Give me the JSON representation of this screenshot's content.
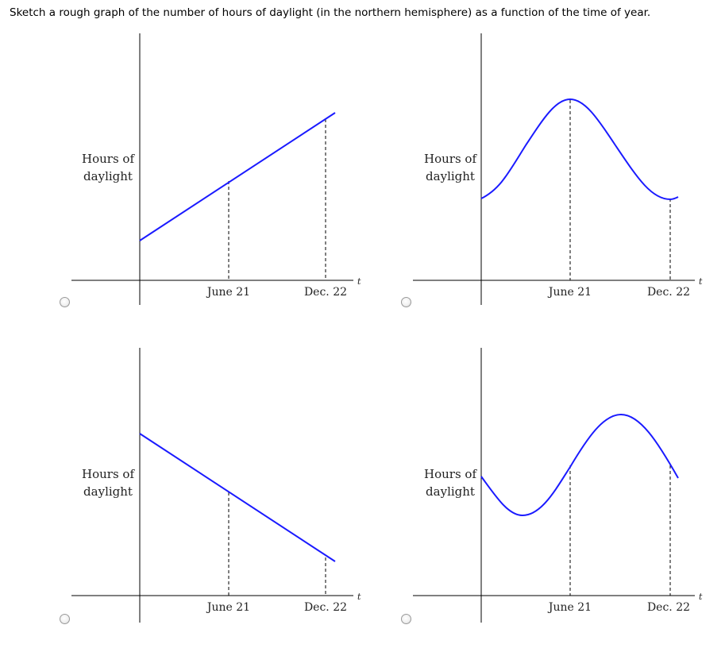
{
  "question": "Sketch a rough graph of the number of hours of daylight (in the northern hemisphere) as a function of the time of year.",
  "options": [
    {
      "id": "A",
      "ylabel_line1": "Hours of",
      "ylabel_line2": "daylight",
      "tick1": "June 21",
      "tick2": "Dec. 22",
      "axis_t": "t",
      "shape": "increasing-line"
    },
    {
      "id": "B",
      "ylabel_line1": "Hours of",
      "ylabel_line2": "daylight",
      "tick1": "June 21",
      "tick2": "Dec. 22",
      "axis_t": "t",
      "shape": "peak-at-june"
    },
    {
      "id": "C",
      "ylabel_line1": "Hours of",
      "ylabel_line2": "daylight",
      "tick1": "June 21",
      "tick2": "Dec. 22",
      "axis_t": "t",
      "shape": "decreasing-line"
    },
    {
      "id": "D",
      "ylabel_line1": "Hours of",
      "ylabel_line2": "daylight",
      "tick1": "June 21",
      "tick2": "Dec. 22",
      "axis_t": "t",
      "shape": "trough-then-peak"
    }
  ],
  "colors": {
    "curve": "#1a1aff",
    "axis": "#000000"
  }
}
